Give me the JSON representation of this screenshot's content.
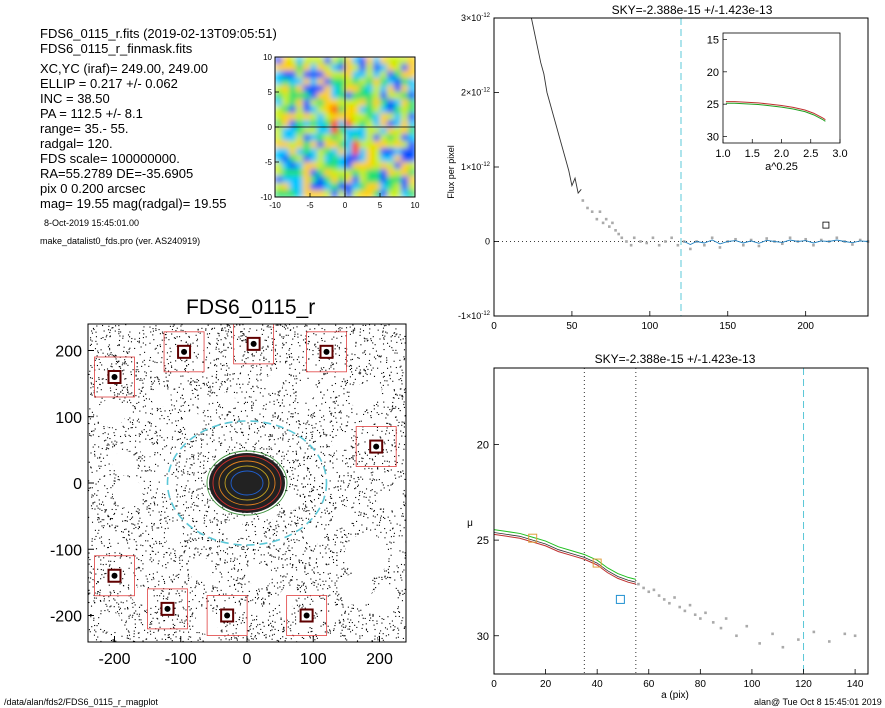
{
  "header": {
    "lines": [
      "FDS6_0115_r.fits   (2019-02-13T09:05:51)",
      "FDS6_0115_r_finmask.fits",
      "XC,YC (iraf)=   249.00, 249.00",
      "ELLIP = 0.217 +/- 0.062",
      "INC   = 38.50",
      "PA    = 112.5 +/-   8.1",
      "range=  35.-   55.",
      "radgal=  120.",
      "FDS scale=  100000000.",
      "RA=55.2789   DE=-35.6905",
      "pix 0 0.200 arcsec",
      "mag=  19.55  mag(radgal)=  19.55"
    ],
    "date": "8-Oct-2019 15:45:01.00",
    "program": "make_datalist0_fds.pro (ver. AS240919)"
  },
  "footer": {
    "path": "/data/alan/fds2/FDS6_0115_r_magplot",
    "user": "alan@  Tue Oct  8 15:45:01 2019"
  },
  "chart_data": [
    {
      "type": "heatmap",
      "xlim": [
        -10,
        10
      ],
      "ylim": [
        -10,
        10
      ],
      "xticks": [
        "-10",
        "-5",
        "0",
        "5",
        "10"
      ],
      "yticks": [
        "10",
        "5",
        "0",
        "-5",
        "-10"
      ],
      "colormap": [
        "#00008b",
        "#0050ff",
        "#00c8ff",
        "#20e070",
        "#c8f000",
        "#ffd000",
        "#ff2000"
      ]
    },
    {
      "type": "scatter",
      "title": "FDS6_0115_r",
      "xlim": [
        -240,
        240
      ],
      "ylim": [
        -240,
        240
      ],
      "xticks": [
        "-200",
        "-100",
        "0",
        "100",
        "200"
      ],
      "yticks": [
        "200",
        "100",
        "0",
        "-100",
        "-200"
      ],
      "ellipse_radius": 120,
      "star_boxes": [
        [
          -200,
          160
        ],
        [
          -95,
          198
        ],
        [
          10,
          210
        ],
        [
          120,
          198
        ],
        [
          195,
          55
        ],
        [
          -200,
          -140
        ],
        [
          -120,
          -190
        ],
        [
          -30,
          -200
        ],
        [
          90,
          -200
        ]
      ]
    },
    {
      "type": "line",
      "title": "SKY=-2.388e-15 +/-1.423e-13",
      "ylabel": "Flux per pixel",
      "xlim": [
        0,
        240
      ],
      "ylim": [
        -1e-12,
        3e-12
      ],
      "xticks": [
        "0",
        "50",
        "100",
        "150",
        "200"
      ],
      "yticks": [
        {
          "v": 3e-12,
          "m": "3",
          "e": "-12"
        },
        {
          "v": 2e-12,
          "m": "2",
          "e": "-12"
        },
        {
          "v": 1e-12,
          "m": "1",
          "e": "-12"
        },
        {
          "v": 0,
          "m": "0",
          "e": ""
        },
        {
          "v": -1e-12,
          "m": "-1",
          "e": "-12"
        }
      ],
      "profile": [
        [
          24,
          3e-12
        ],
        [
          26,
          2.8e-12
        ],
        [
          28,
          2.6e-12
        ],
        [
          30,
          2.4e-12
        ],
        [
          32,
          2.25e-12
        ],
        [
          34,
          2e-12
        ],
        [
          36,
          1.85e-12
        ],
        [
          38,
          1.7e-12
        ],
        [
          40,
          1.55e-12
        ],
        [
          42,
          1.4e-12
        ],
        [
          44,
          1.25e-12
        ],
        [
          46,
          1.1e-12
        ],
        [
          48,
          9.5e-13
        ],
        [
          50,
          7.5e-13
        ],
        [
          52,
          8.5e-13
        ],
        [
          54,
          6.5e-13
        ],
        [
          56,
          7e-13
        ]
      ],
      "scatter": [
        [
          57,
          5.5e-13
        ],
        [
          60,
          4.5e-13
        ],
        [
          63,
          4e-13
        ],
        [
          66,
          3e-13
        ],
        [
          68,
          4e-13
        ],
        [
          70,
          2.5e-13
        ],
        [
          72,
          3e-13
        ],
        [
          74,
          2e-13
        ],
        [
          76,
          2.5e-13
        ],
        [
          78,
          1.5e-13
        ],
        [
          80,
          1e-13
        ],
        [
          82,
          5e-14
        ],
        [
          85,
          0.0
        ],
        [
          88,
          -5e-14
        ],
        [
          90,
          5e-14
        ],
        [
          94,
          0.0
        ],
        [
          98,
          -2e-14
        ],
        [
          102,
          5e-14
        ],
        [
          106,
          -5e-14
        ],
        [
          110,
          0.0
        ],
        [
          114,
          5e-14
        ],
        [
          118,
          -5e-14
        ],
        [
          122,
          0.0
        ],
        [
          126,
          -1e-13
        ],
        [
          130,
          0.0
        ],
        [
          135,
          -5e-14
        ],
        [
          140,
          5e-14
        ],
        [
          145,
          -8e-14
        ],
        [
          150,
          0.0
        ],
        [
          155,
          3e-14
        ],
        [
          160,
          -5e-14
        ],
        [
          165,
          2e-14
        ],
        [
          170,
          -6e-14
        ],
        [
          175,
          4e-14
        ],
        [
          180,
          0.0
        ],
        [
          185,
          -3e-14
        ],
        [
          190,
          5e-14
        ],
        [
          195,
          0.0
        ],
        [
          200,
          3e-14
        ],
        [
          205,
          -5e-14
        ],
        [
          210,
          2e-14
        ],
        [
          215,
          0.0
        ],
        [
          220,
          5e-14
        ],
        [
          225,
          0.0
        ],
        [
          230,
          -4e-14
        ],
        [
          235,
          2e-14
        ],
        [
          240,
          0.0
        ]
      ],
      "vline_x": 120,
      "box_point": [
        213,
        2.2e-13
      ],
      "inset": {
        "xlabel": "a^0.25",
        "xlim": [
          1.0,
          3.0
        ],
        "ylim": [
          31,
          14
        ],
        "xticks": [
          "1.0",
          "1.5",
          "2.0",
          "2.5",
          "3.0"
        ],
        "yticks": [
          "15",
          "20",
          "25",
          "30"
        ],
        "curve": [
          [
            1.05,
            24.6
          ],
          [
            1.2,
            24.6
          ],
          [
            1.4,
            24.7
          ],
          [
            1.6,
            24.8
          ],
          [
            1.8,
            25.0
          ],
          [
            2.0,
            25.2
          ],
          [
            2.2,
            25.5
          ],
          [
            2.4,
            25.9
          ],
          [
            2.55,
            26.4
          ],
          [
            2.7,
            27.1
          ],
          [
            2.75,
            27.4
          ]
        ]
      }
    },
    {
      "type": "line",
      "title": "SKY=-2.388e-15 +/-1.423e-13",
      "xlabel": "a (pix)",
      "ylabel": "μ",
      "xlim": [
        0,
        145
      ],
      "ylim": [
        16,
        32
      ],
      "xticks": [
        "0",
        "20",
        "40",
        "60",
        "80",
        "100",
        "120",
        "140"
      ],
      "yticks": [
        "20",
        "25",
        "30"
      ],
      "profile": [
        [
          0,
          24.6
        ],
        [
          5,
          24.7
        ],
        [
          10,
          24.8
        ],
        [
          15,
          25.0
        ],
        [
          20,
          25.2
        ],
        [
          25,
          25.5
        ],
        [
          30,
          25.7
        ],
        [
          35,
          25.9
        ],
        [
          40,
          26.2
        ],
        [
          44,
          26.6
        ],
        [
          48,
          26.9
        ],
        [
          52,
          27.1
        ],
        [
          55,
          27.2
        ]
      ],
      "scatter": [
        [
          56,
          27.3
        ],
        [
          58,
          27.5
        ],
        [
          60,
          27.7
        ],
        [
          62,
          27.6
        ],
        [
          64,
          27.9
        ],
        [
          66,
          28.1
        ],
        [
          68,
          28.3
        ],
        [
          70,
          28.0
        ],
        [
          72,
          28.5
        ],
        [
          74,
          28.7
        ],
        [
          76,
          28.4
        ],
        [
          78,
          28.9
        ],
        [
          80,
          29.1
        ],
        [
          82,
          28.8
        ],
        [
          85,
          29.3
        ],
        [
          88,
          29.6
        ],
        [
          90,
          29.1
        ],
        [
          94,
          30.0
        ],
        [
          98,
          29.5
        ],
        [
          103,
          30.4
        ],
        [
          108,
          29.9
        ],
        [
          112,
          30.6
        ],
        [
          118,
          30.2
        ],
        [
          124,
          29.8
        ],
        [
          130,
          30.3
        ],
        [
          136,
          29.9
        ],
        [
          140,
          30.0
        ]
      ],
      "dotted_vlines": [
        35,
        55
      ],
      "dash_vline": 120,
      "orange_boxes": [
        [
          15,
          24.9
        ],
        [
          40,
          26.2
        ]
      ],
      "blue_box": [
        49,
        28.1
      ]
    }
  ]
}
